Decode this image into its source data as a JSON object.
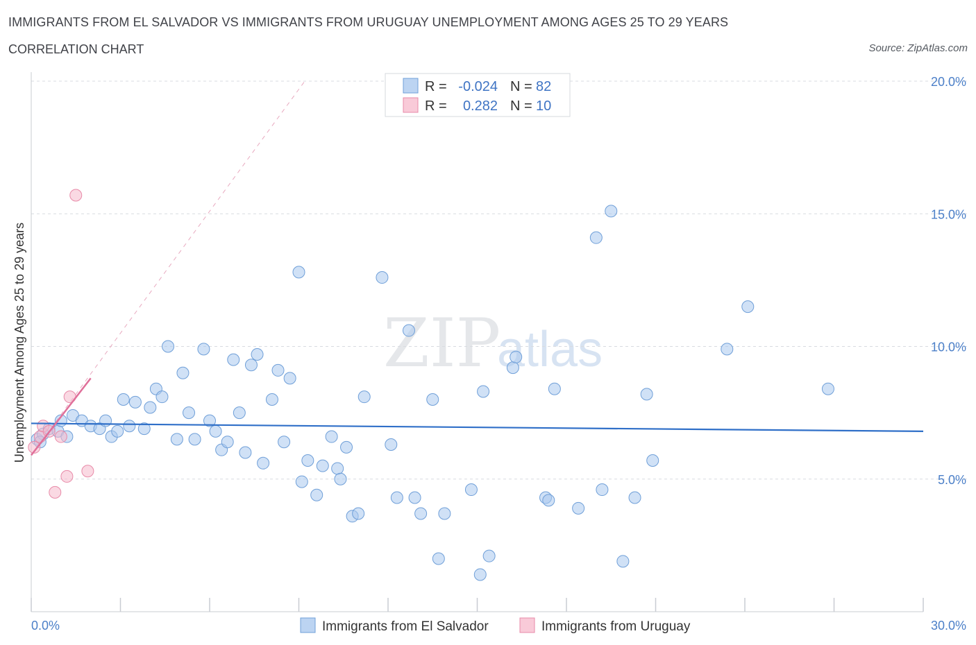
{
  "header": {
    "title": "IMMIGRANTS FROM EL SALVADOR VS IMMIGRANTS FROM URUGUAY UNEMPLOYMENT AMONG AGES 25 TO 29 YEARS",
    "subtitle": "CORRELATION CHART",
    "source": "Source: ZipAtlas.com"
  },
  "watermark": {
    "zip": "ZIP",
    "atlas": "atlas"
  },
  "colors": {
    "blue_fill": "#aac8ee",
    "blue_stroke": "#6f9fd8",
    "blue_line": "#2f6fc8",
    "pink_fill": "#f6b9cc",
    "pink_stroke": "#e88aa8",
    "pink_line": "#e0709a",
    "grid": "#d8dbe0",
    "tick_text": "#4b7fc8"
  },
  "legend": {
    "rows": [
      {
        "r_label": "R =",
        "r_value": "-0.024",
        "n_label": "N =",
        "n_value": "82"
      },
      {
        "r_label": "R =",
        "r_value": "0.282",
        "n_label": "N =",
        "n_value": "10"
      }
    ]
  },
  "chart_data": {
    "type": "scatter",
    "title": "IMMIGRANTS FROM EL SALVADOR VS IMMIGRANTS FROM URUGUAY UNEMPLOYMENT AMONG AGES 25 TO 29 YEARS",
    "xlabel": "",
    "ylabel": "Unemployment Among Ages 25 to 29 years",
    "xlim": [
      0,
      30
    ],
    "ylim": [
      0,
      20
    ],
    "x_tick_labels": [
      "0.0%",
      "30.0%"
    ],
    "y_ticks": [
      5,
      10,
      15,
      20
    ],
    "y_tick_labels": [
      "5.0%",
      "10.0%",
      "15.0%",
      "20.0%"
    ],
    "series": [
      {
        "name": "Immigrants from El Salvador",
        "color": "#aac8ee",
        "r": -0.024,
        "n": 82,
        "trend": {
          "x": [
            0,
            30
          ],
          "y": [
            7.1,
            6.8
          ]
        },
        "points": [
          [
            0.2,
            6.5
          ],
          [
            0.4,
            6.7
          ],
          [
            0.6,
            6.9
          ],
          [
            0.9,
            6.8
          ],
          [
            1.0,
            7.2
          ],
          [
            1.2,
            6.6
          ],
          [
            1.4,
            7.4
          ],
          [
            1.7,
            7.2
          ],
          [
            2.0,
            7.0
          ],
          [
            2.3,
            6.9
          ],
          [
            2.5,
            7.2
          ],
          [
            2.7,
            6.6
          ],
          [
            2.9,
            6.8
          ],
          [
            3.1,
            8.0
          ],
          [
            3.3,
            7.0
          ],
          [
            3.5,
            7.9
          ],
          [
            3.8,
            6.9
          ],
          [
            4.0,
            7.7
          ],
          [
            4.2,
            8.4
          ],
          [
            4.4,
            8.1
          ],
          [
            4.6,
            10.0
          ],
          [
            4.9,
            6.5
          ],
          [
            5.1,
            9.0
          ],
          [
            5.3,
            7.5
          ],
          [
            5.5,
            6.5
          ],
          [
            5.8,
            9.9
          ],
          [
            6.0,
            7.2
          ],
          [
            6.2,
            6.8
          ],
          [
            6.4,
            6.1
          ],
          [
            6.6,
            6.4
          ],
          [
            6.8,
            9.5
          ],
          [
            7.0,
            7.5
          ],
          [
            7.2,
            6.0
          ],
          [
            7.4,
            9.3
          ],
          [
            7.6,
            9.7
          ],
          [
            7.8,
            5.6
          ],
          [
            8.1,
            8.0
          ],
          [
            8.3,
            9.1
          ],
          [
            8.5,
            6.4
          ],
          [
            8.7,
            8.8
          ],
          [
            9.0,
            12.8
          ],
          [
            9.1,
            4.9
          ],
          [
            9.3,
            5.7
          ],
          [
            9.6,
            4.4
          ],
          [
            9.8,
            5.5
          ],
          [
            10.1,
            6.6
          ],
          [
            10.3,
            5.4
          ],
          [
            10.4,
            5.0
          ],
          [
            10.6,
            6.2
          ],
          [
            10.8,
            3.6
          ],
          [
            11.0,
            3.7
          ],
          [
            11.2,
            8.1
          ],
          [
            11.8,
            12.6
          ],
          [
            12.1,
            6.3
          ],
          [
            12.3,
            4.3
          ],
          [
            12.7,
            10.6
          ],
          [
            12.9,
            4.3
          ],
          [
            13.1,
            3.7
          ],
          [
            13.5,
            8.0
          ],
          [
            13.7,
            2.0
          ],
          [
            13.9,
            3.7
          ],
          [
            14.8,
            4.6
          ],
          [
            15.1,
            1.4
          ],
          [
            15.2,
            8.3
          ],
          [
            15.4,
            2.1
          ],
          [
            16.2,
            9.2
          ],
          [
            16.3,
            9.6
          ],
          [
            17.3,
            4.3
          ],
          [
            17.4,
            4.2
          ],
          [
            17.6,
            8.4
          ],
          [
            18.4,
            3.9
          ],
          [
            19.0,
            14.1
          ],
          [
            19.2,
            4.6
          ],
          [
            19.5,
            15.1
          ],
          [
            19.9,
            1.9
          ],
          [
            20.3,
            4.3
          ],
          [
            20.7,
            8.2
          ],
          [
            20.9,
            5.7
          ],
          [
            23.4,
            9.9
          ],
          [
            24.1,
            11.5
          ],
          [
            26.8,
            8.4
          ],
          [
            0.3,
            6.4
          ]
        ]
      },
      {
        "name": "Immigrants from Uruguay",
        "color": "#f6b9cc",
        "r": 0.282,
        "n": 10,
        "trend": {
          "x": [
            0,
            2
          ],
          "y": [
            5.9,
            8.8
          ]
        },
        "trend_dashed": {
          "x": [
            0,
            9.2
          ],
          "y": [
            5.9,
            20.0
          ]
        },
        "points": [
          [
            0.1,
            6.2
          ],
          [
            0.3,
            6.6
          ],
          [
            0.4,
            7.0
          ],
          [
            0.6,
            6.8
          ],
          [
            0.8,
            4.5
          ],
          [
            1.0,
            6.6
          ],
          [
            1.2,
            5.1
          ],
          [
            1.3,
            8.1
          ],
          [
            1.5,
            15.7
          ],
          [
            1.9,
            5.3
          ]
        ]
      }
    ],
    "legend_labels": [
      "Immigrants from El Salvador",
      "Immigrants from Uruguay"
    ]
  }
}
